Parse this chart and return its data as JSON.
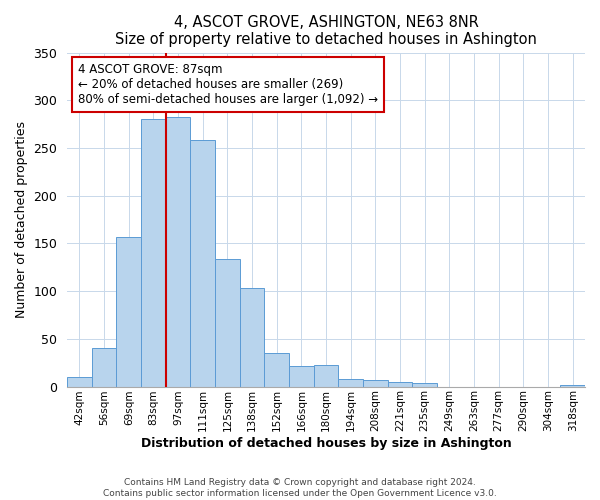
{
  "title": "4, ASCOT GROVE, ASHINGTON, NE63 8NR",
  "subtitle": "Size of property relative to detached houses in Ashington",
  "xlabel": "Distribution of detached houses by size in Ashington",
  "ylabel": "Number of detached properties",
  "bar_labels": [
    "42sqm",
    "56sqm",
    "69sqm",
    "83sqm",
    "97sqm",
    "111sqm",
    "125sqm",
    "138sqm",
    "152sqm",
    "166sqm",
    "180sqm",
    "194sqm",
    "208sqm",
    "221sqm",
    "235sqm",
    "249sqm",
    "263sqm",
    "277sqm",
    "290sqm",
    "304sqm",
    "318sqm"
  ],
  "bar_values": [
    10,
    40,
    157,
    280,
    283,
    258,
    134,
    103,
    35,
    22,
    23,
    8,
    7,
    5,
    4,
    0,
    0,
    0,
    0,
    0,
    2
  ],
  "bar_color": "#b8d4ed",
  "bar_edge_color": "#5b9bd5",
  "red_line_x": 3.5,
  "marker_label": "4 ASCOT GROVE: 87sqm",
  "annotation_line1": "← 20% of detached houses are smaller (269)",
  "annotation_line2": "80% of semi-detached houses are larger (1,092) →",
  "marker_color": "#cc0000",
  "ylim": [
    0,
    350
  ],
  "yticks": [
    0,
    50,
    100,
    150,
    200,
    250,
    300,
    350
  ],
  "footer1": "Contains HM Land Registry data © Crown copyright and database right 2024.",
  "footer2": "Contains public sector information licensed under the Open Government Licence v3.0.",
  "box_color": "#cc0000",
  "background_color": "#ffffff",
  "grid_color": "#c8d8ea"
}
